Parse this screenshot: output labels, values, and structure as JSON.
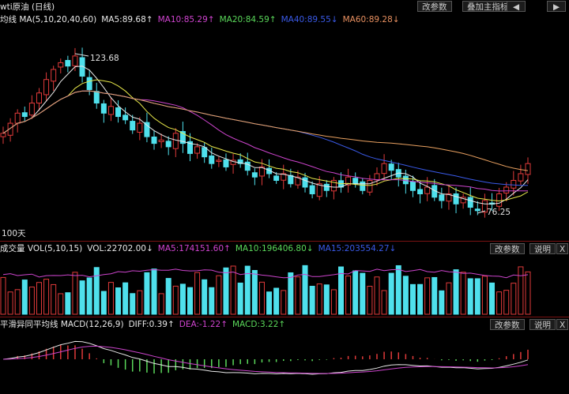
{
  "price_panel": {
    "title": "wti原油 (日线)",
    "ma_label": "均线 MA(5,10,20,40,60)",
    "ma5": "MA5:89.68↑",
    "ma10": "MA10:85.29↑",
    "ma20": "MA20:84.59↑",
    "ma40": "MA40:89.55↓",
    "ma60": "MA60:89.28↓",
    "btn_params": "改参数",
    "btn_overlay": "叠加主指标",
    "btn_prev": "◀",
    "btn_next": "▶",
    "high_label": "123.68",
    "low_label": "76.25",
    "days_label": "100天"
  },
  "volume_panel": {
    "title": "成交量 VOL(5,10,15)",
    "vol": "VOL:22702.00↓",
    "ma5": "MA5:174151.60↑",
    "ma10": "MA10:196406.80↓",
    "ma15": "MA15:203554.27↓",
    "btn_params": "改参数",
    "btn_help": "说明",
    "btn_close": "X"
  },
  "macd_panel": {
    "title": "平滑异同平均线 MACD(12,26,9)",
    "diff": "DIFF:0.39↑",
    "dea": "DEA:-1.22↑",
    "macd": "MACD:3.22↑",
    "btn_params": "改参数",
    "btn_help": "说明",
    "btn_close": "X"
  },
  "colors": {
    "up": "#e03a3a",
    "down": "#4fe0ec",
    "ma5": "#e8e8e8",
    "ma10": "#e8e84a",
    "ma20": "#cc44cc",
    "ma40": "#3a5ae8",
    "ma60": "#e8a060"
  },
  "chart_data": {
    "type": "candlestick",
    "price": [
      100,
      103,
      106,
      105,
      109,
      112,
      116,
      119,
      121,
      120,
      123,
      117,
      113,
      109,
      106,
      108,
      105,
      104,
      101,
      103,
      99,
      97,
      98,
      96,
      100,
      97,
      94,
      96,
      93,
      91,
      92,
      90,
      92,
      91,
      89,
      87,
      90,
      88,
      86,
      88,
      85,
      87,
      84,
      82,
      85,
      83,
      86,
      84,
      87,
      85,
      83,
      86,
      88,
      91,
      89,
      87,
      85,
      83,
      82,
      84,
      81,
      80,
      82,
      79,
      81,
      78,
      77,
      80,
      79,
      82,
      84,
      86,
      88,
      91
    ],
    "price_high": 123.68,
    "price_low": 76.25,
    "period_days": 100
  }
}
